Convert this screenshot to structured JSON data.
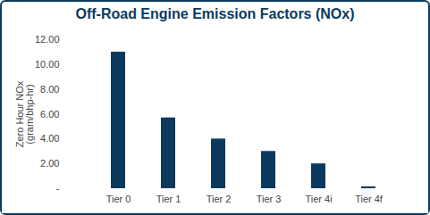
{
  "chart_data": {
    "type": "bar",
    "title": "Off-Road Engine Emission Factors (NOx)",
    "y_label": "Zero Hour NOx\n(gram/bhp-hr)",
    "categories": [
      "Tier 0",
      "Tier 1",
      "Tier 2",
      "Tier 3",
      "Tier 4i",
      "Tier 4f"
    ],
    "values": [
      11.0,
      5.7,
      4.0,
      3.0,
      2.0,
      0.15
    ],
    "color": "#0b3a5e",
    "ylim": [
      0,
      12
    ],
    "yticks": [
      {
        "value": 0,
        "label": "-"
      },
      {
        "value": 2,
        "label": "2.00"
      },
      {
        "value": 4,
        "label": "4.00"
      },
      {
        "value": 6,
        "label": "6.00"
      },
      {
        "value": 8,
        "label": "8.00"
      },
      {
        "value": 10,
        "label": "10.00"
      },
      {
        "value": 12,
        "label": "12.00"
      }
    ],
    "grid": false
  }
}
